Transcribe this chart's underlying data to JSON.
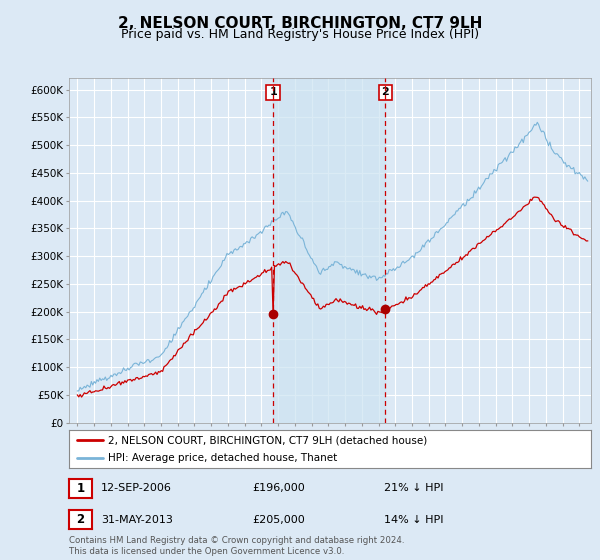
{
  "title": "2, NELSON COURT, BIRCHINGTON, CT7 9LH",
  "subtitle": "Price paid vs. HM Land Registry's House Price Index (HPI)",
  "title_fontsize": 11,
  "subtitle_fontsize": 9,
  "background_color": "#dce9f5",
  "plot_bg_color": "#dce9f5",
  "grid_color": "#ffffff",
  "ylim": [
    0,
    620000
  ],
  "yticks": [
    0,
    50000,
    100000,
    150000,
    200000,
    250000,
    300000,
    350000,
    400000,
    450000,
    500000,
    550000,
    600000
  ],
  "legend_entry1": "2, NELSON COURT, BIRCHINGTON, CT7 9LH (detached house)",
  "legend_entry2": "HPI: Average price, detached house, Thanet",
  "purchase1_label": "1",
  "purchase1_date": "12-SEP-2006",
  "purchase1_price": "£196,000",
  "purchase1_hpi": "21% ↓ HPI",
  "purchase1_year": 2006.7,
  "purchase1_value": 196000,
  "purchase2_label": "2",
  "purchase2_date": "31-MAY-2013",
  "purchase2_price": "£205,000",
  "purchase2_hpi": "14% ↓ HPI",
  "purchase2_year": 2013.4,
  "purchase2_value": 205000,
  "footer": "Contains HM Land Registry data © Crown copyright and database right 2024.\nThis data is licensed under the Open Government Licence v3.0.",
  "hpi_color": "#7ab4d8",
  "price_color": "#cc0000",
  "marker_color": "#aa0000",
  "vline_color": "#cc0000",
  "shade_color": "#cde3f2",
  "xstart": 1995,
  "xend": 2025
}
